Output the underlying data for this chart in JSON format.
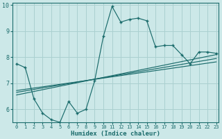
{
  "xlabel": "Humidex (Indice chaleur)",
  "bg_color": "#cce8e8",
  "grid_color": "#aad0d0",
  "line_color": "#1a6b6b",
  "xlim": [
    -0.5,
    23.3
  ],
  "ylim": [
    5.5,
    10.1
  ],
  "yticks": [
    6,
    7,
    8,
    9,
    10
  ],
  "xticks": [
    0,
    1,
    2,
    3,
    4,
    5,
    6,
    7,
    8,
    9,
    10,
    11,
    12,
    13,
    14,
    15,
    16,
    17,
    18,
    19,
    20,
    21,
    22,
    23
  ],
  "main_x": [
    0,
    1,
    2,
    3,
    4,
    5,
    6,
    7,
    8,
    9,
    10,
    11,
    12,
    13,
    14,
    15,
    16,
    17,
    18,
    19,
    20,
    21,
    22,
    23
  ],
  "main_y": [
    7.75,
    7.6,
    6.4,
    5.85,
    5.6,
    5.5,
    6.3,
    5.85,
    6.0,
    7.1,
    8.8,
    9.95,
    9.35,
    9.45,
    9.5,
    9.4,
    8.4,
    8.45,
    8.45,
    8.1,
    7.75,
    8.2,
    8.2,
    8.15
  ],
  "trend1_x": [
    0,
    23
  ],
  "trend1_y": [
    6.55,
    8.1
  ],
  "trend2_x": [
    0,
    23
  ],
  "trend2_y": [
    6.65,
    7.95
  ],
  "trend3_x": [
    0,
    23
  ],
  "trend3_y": [
    6.72,
    7.82
  ]
}
